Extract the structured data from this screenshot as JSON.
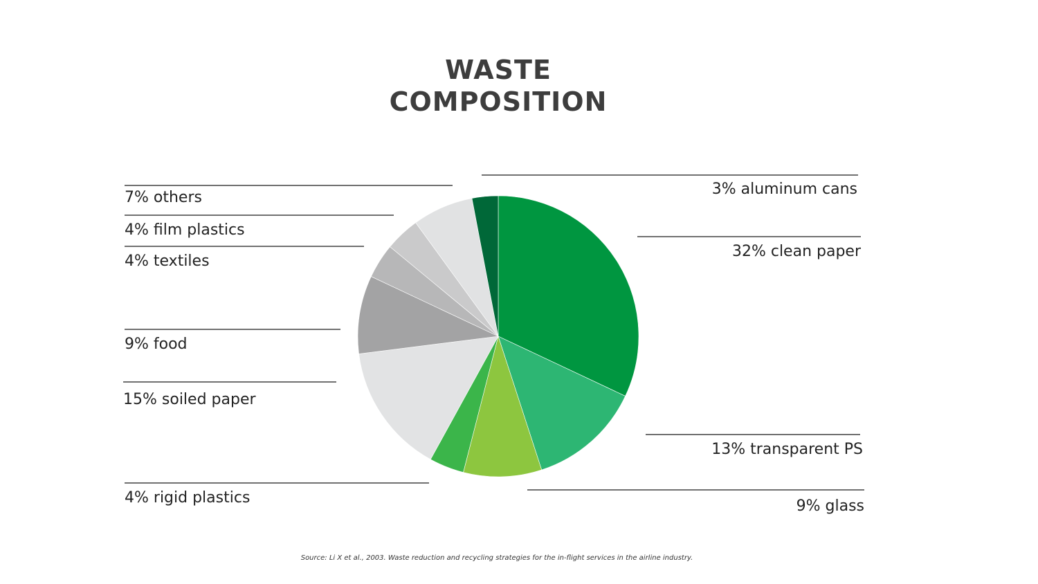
{
  "title_lines": [
    "WASTE",
    "COMPOSITION"
  ],
  "source": "Source: Li X et al., 2003. Waste reduction and recycling strategies for the in-flight services in the airline industry.",
  "chart_data": {
    "type": "pie",
    "title": "WASTE COMPOSITION",
    "unit": "%",
    "start": "12 o'clock",
    "direction": "clockwise",
    "slices": [
      {
        "label": "32% clean paper",
        "value": 32,
        "color": "#009640"
      },
      {
        "label": "13% transparent PS",
        "value": 13,
        "color": "#2db673"
      },
      {
        "label": "9% glass",
        "value": 9,
        "color": "#8dc63f"
      },
      {
        "label": "4% rigid plastics",
        "value": 4,
        "color": "#3bb54a"
      },
      {
        "label": "15% soiled paper",
        "value": 15,
        "color": "#e2e3e4"
      },
      {
        "label": "9% food",
        "value": 9,
        "color": "#a3a3a4"
      },
      {
        "label": "4% textiles",
        "value": 4,
        "color": "#b7b7b8"
      },
      {
        "label": "4% film plastics",
        "value": 4,
        "color": "#cacacb"
      },
      {
        "label": "7% others",
        "value": 7,
        "color": "#e1e2e3"
      },
      {
        "label": "3% aluminum cans",
        "value": 3,
        "color": "#006838"
      }
    ]
  }
}
